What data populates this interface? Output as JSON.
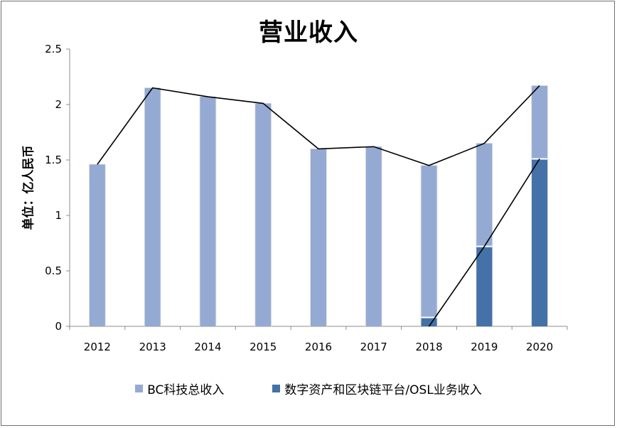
{
  "chart_data": {
    "type": "bar",
    "title": "营业收入",
    "ylabel": "单位：亿人民币",
    "xlabel": "",
    "categories": [
      "2012",
      "2013",
      "2014",
      "2015",
      "2016",
      "2017",
      "2018",
      "2019",
      "2020"
    ],
    "ylim": [
      0,
      2.5
    ],
    "yticks": [
      "0",
      "0.5",
      "1",
      "1.5",
      "2",
      "2.5"
    ],
    "grid": false,
    "legend_position": "bottom",
    "series": [
      {
        "name": "BC科技总收入",
        "values": [
          1.46,
          2.15,
          2.07,
          2.01,
          1.6,
          1.62,
          1.45,
          1.65,
          2.17
        ],
        "color": "#95aad3"
      },
      {
        "name": "数字资产和区块链平台/OSL业务收入",
        "values": [
          0,
          0,
          0,
          0,
          0,
          0,
          0.08,
          0.72,
          1.51
        ],
        "color": "#4471a8"
      }
    ],
    "line_overlays": [
      {
        "series": "BC科技总收入",
        "color": "#000000"
      },
      {
        "series": "数字资产和区块链平台/OSL业务收入",
        "color": "#000000",
        "from_category": "2018"
      }
    ]
  }
}
